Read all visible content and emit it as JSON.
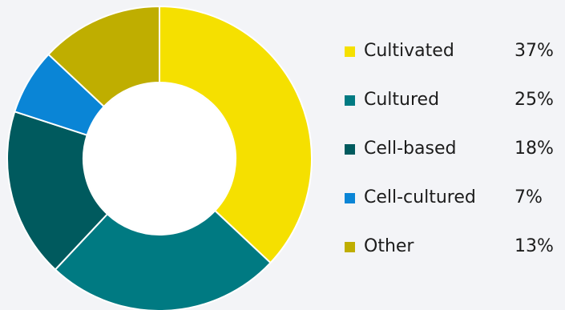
{
  "chart_data": {
    "type": "pie",
    "subtype": "donut",
    "categories": [
      "Cultivated",
      "Cultured",
      "Cell-based",
      "Cell-cultured",
      "Other"
    ],
    "values": [
      37,
      25,
      18,
      7,
      13
    ],
    "value_labels": [
      "37%",
      "25%",
      "18%",
      "7%",
      "13%"
    ],
    "colors": [
      "#f5e000",
      "#007a82",
      "#005a5e",
      "#0a85d6",
      "#bfae00"
    ],
    "legend_position": "right",
    "start_angle": "top",
    "direction": "clockwise"
  }
}
